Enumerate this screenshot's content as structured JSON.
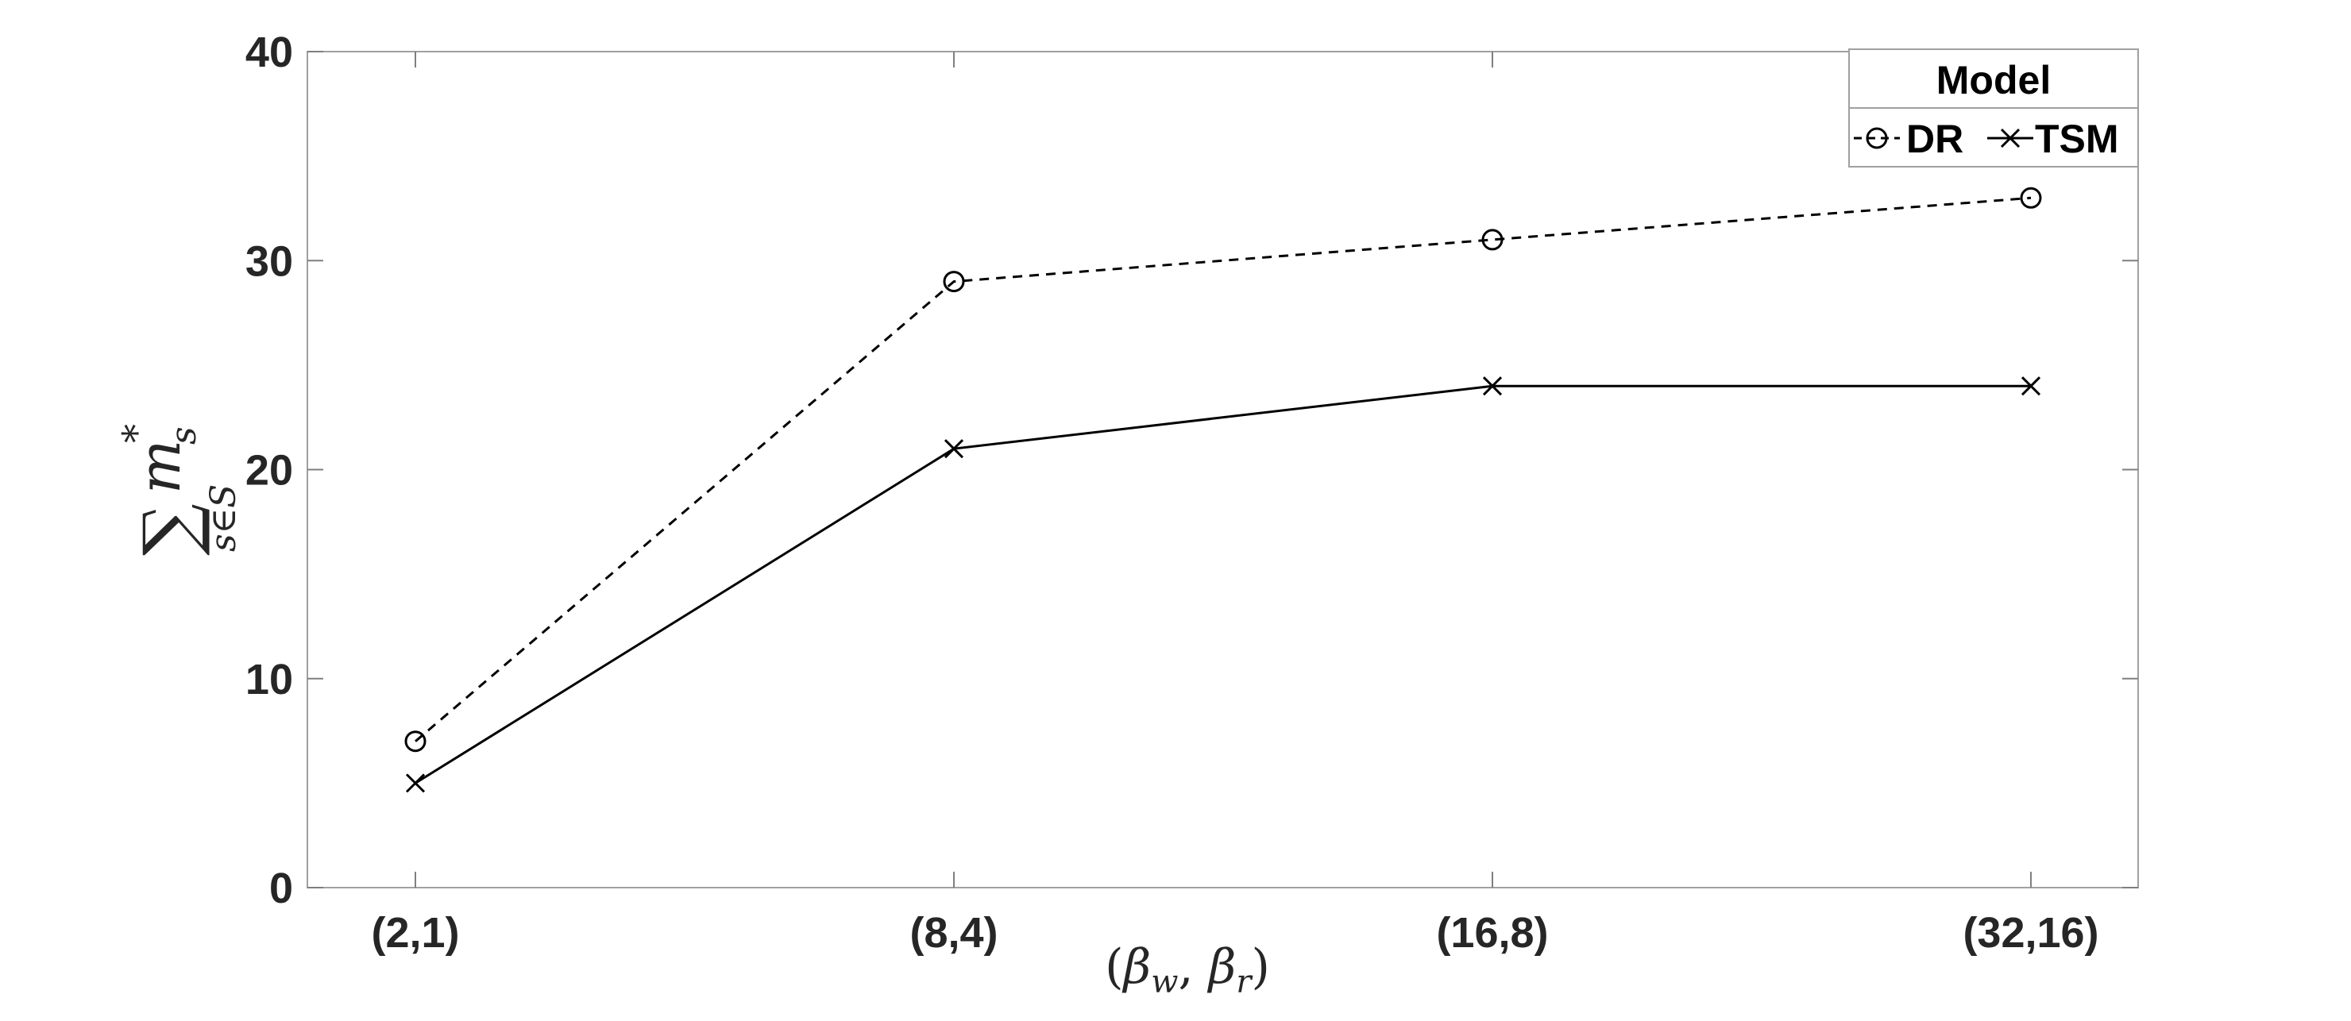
{
  "chart_data": {
    "type": "line",
    "categories": [
      "(2,1)",
      "(8,4)",
      "(16,8)",
      "(32,16)"
    ],
    "series": [
      {
        "name": "DR",
        "values": [
          7,
          29,
          31,
          33
        ],
        "line_style": "dashed",
        "marker": "circle",
        "color": "#000000"
      },
      {
        "name": "TSM",
        "values": [
          5,
          21,
          24,
          24
        ],
        "line_style": "solid",
        "marker": "x",
        "color": "#000000"
      }
    ],
    "xlabel": {
      "open": "(",
      "beta1": "β",
      "sub1": "w",
      "comma": ", ",
      "beta2": "β",
      "sub2": "r",
      "close": ")"
    },
    "ylabel": {
      "sum": "∑",
      "sub": "s∈S",
      "var": "m",
      "sup": "*",
      "var_sub": "s"
    },
    "ylim": [
      0,
      40
    ],
    "yticks": [
      "0",
      "10",
      "20",
      "30",
      "40"
    ],
    "grid": false,
    "legend": {
      "title": "Model",
      "placement": "top-right"
    }
  }
}
